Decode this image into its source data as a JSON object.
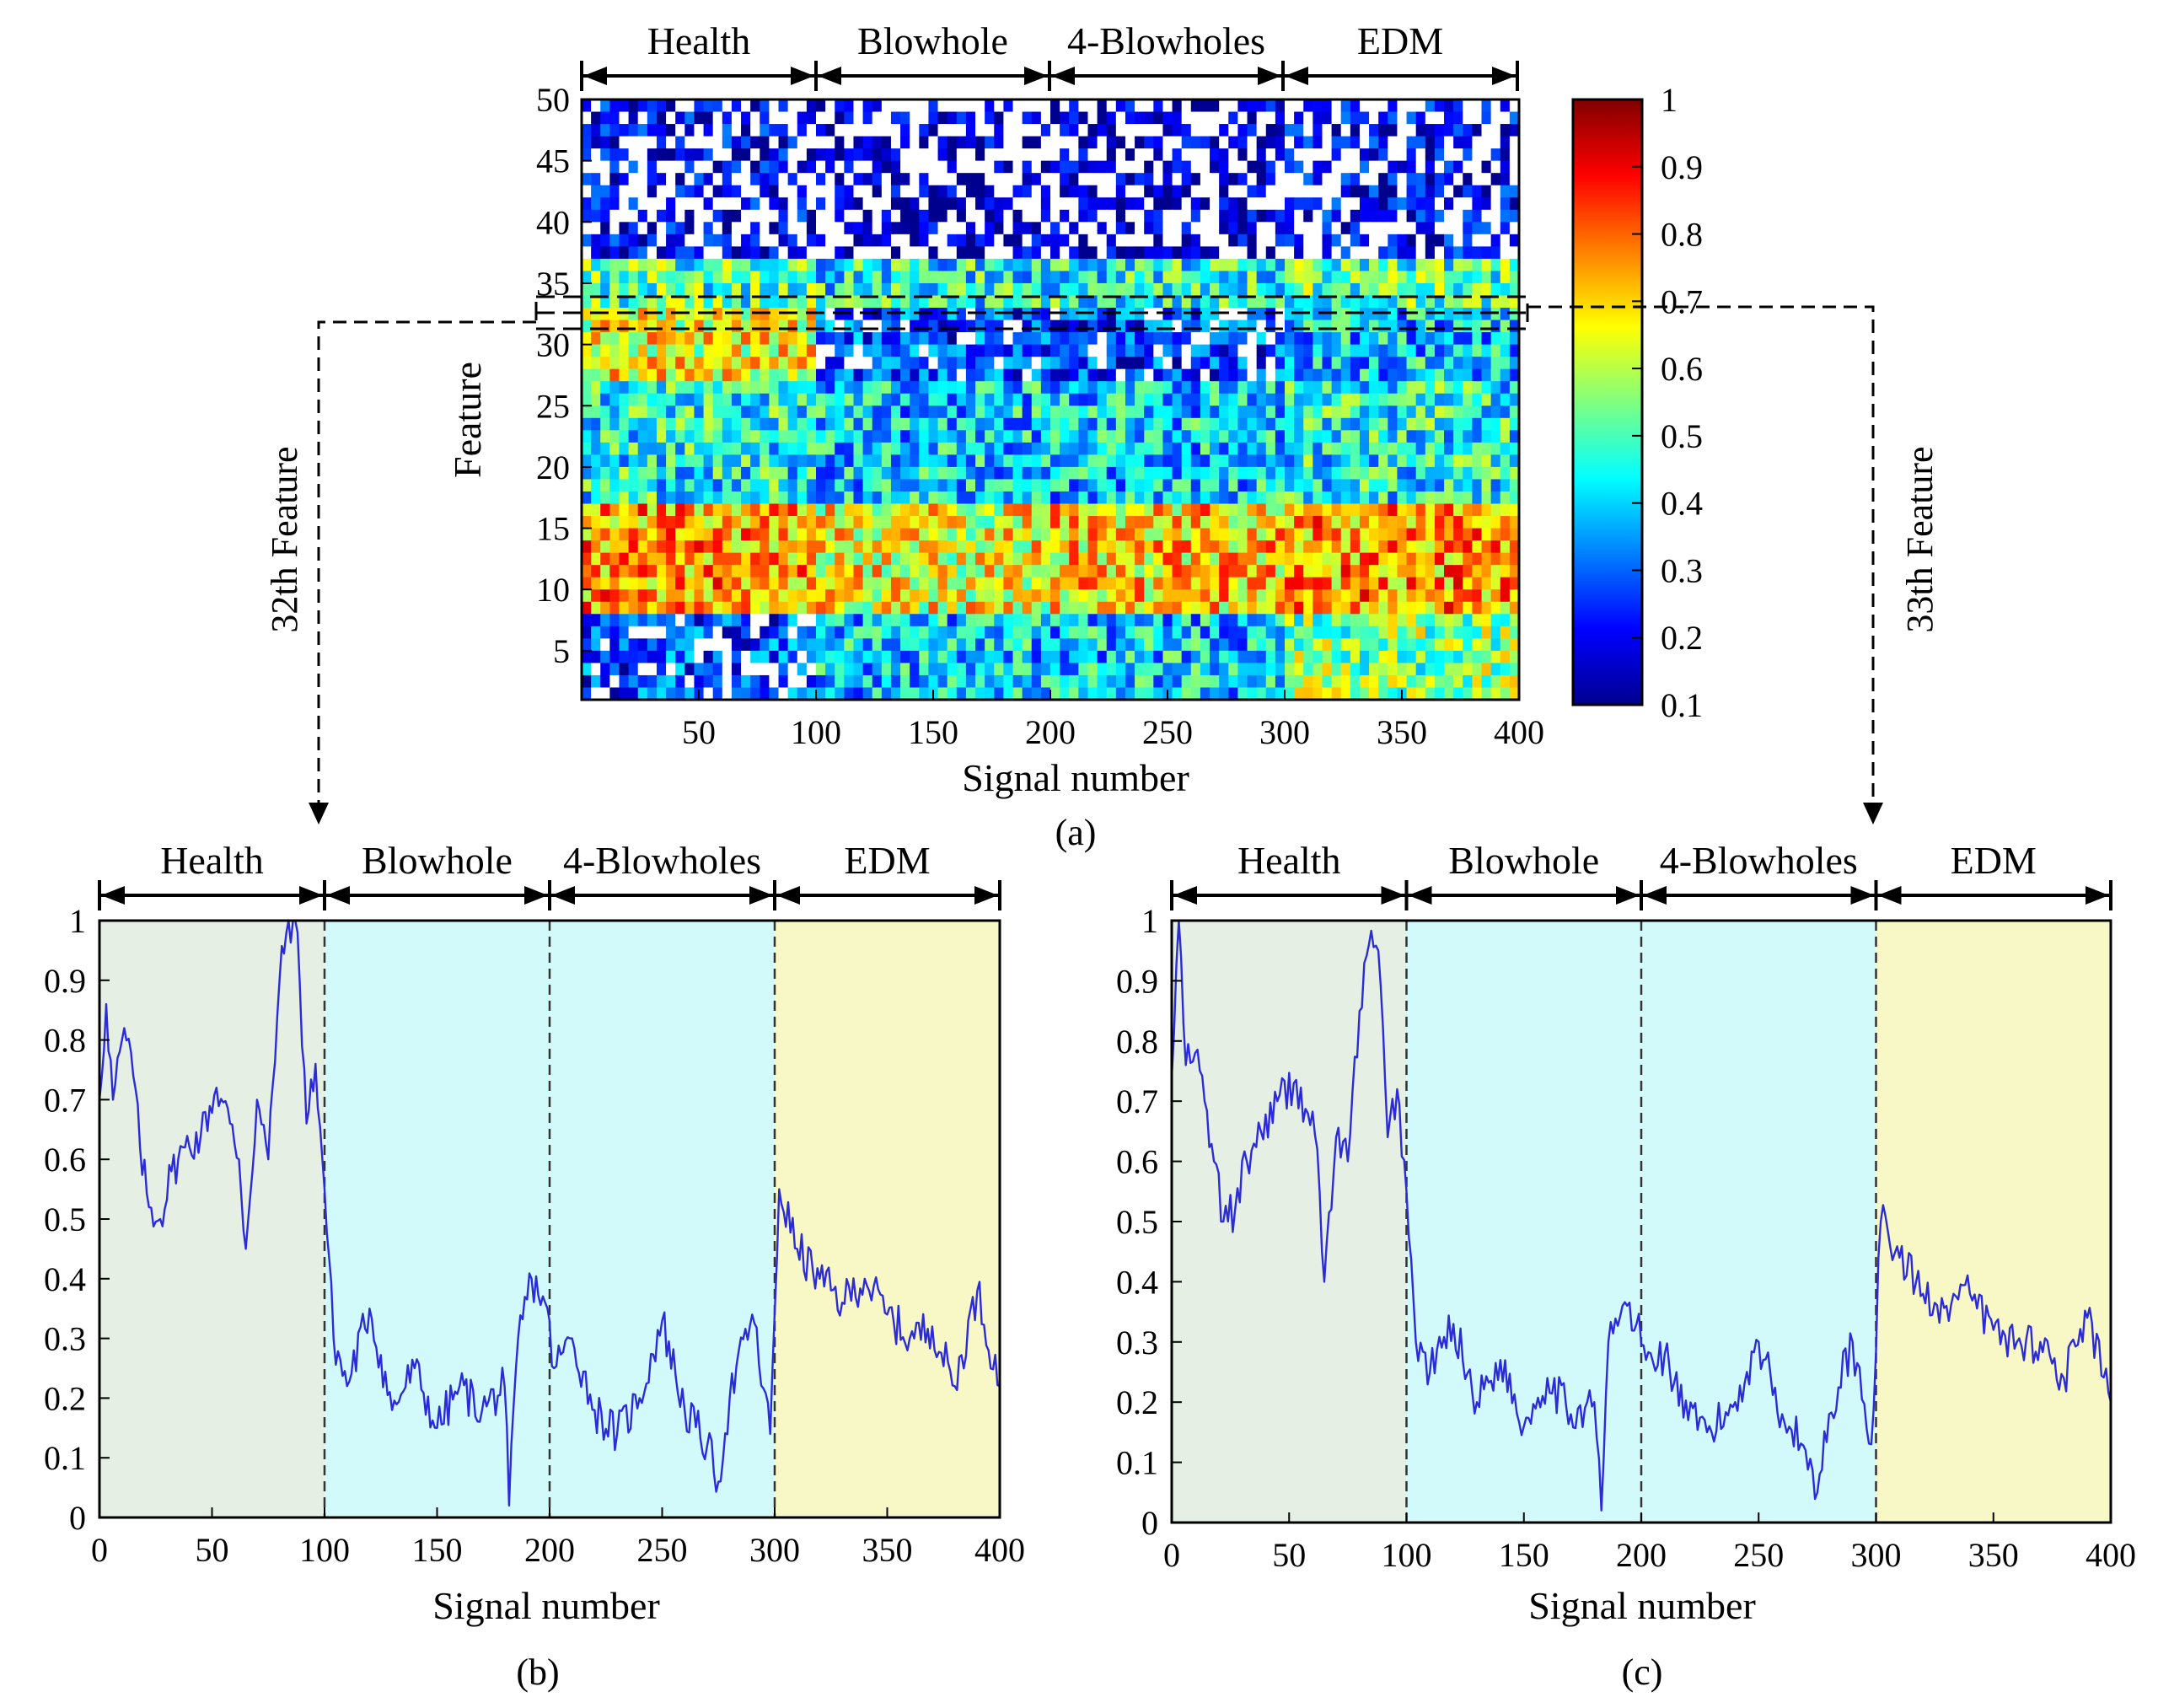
{
  "panel_a": {
    "caption": "(a)",
    "xlabel": "Signal number",
    "ylabel": "Feature",
    "xticks": [
      50,
      100,
      150,
      200,
      250,
      300,
      350,
      400
    ],
    "yticks": [
      5,
      10,
      15,
      20,
      25,
      30,
      35,
      40,
      45,
      50
    ],
    "colorbar_ticks": [
      "1",
      "0.9",
      "0.8",
      "0.7",
      "0.6",
      "0.5",
      "0.4",
      "0.3",
      "0.2",
      "0.1"
    ],
    "groups": [
      "Health",
      "Blowhole",
      "4-Blowholes",
      "EDM"
    ]
  },
  "annotations": {
    "left_feature": "32th Feature",
    "right_feature": "33th Feature"
  },
  "panel_b": {
    "caption": "(b)",
    "xlabel": "Signal number",
    "groups": [
      "Health",
      "Blowhole",
      "4-Blowholes",
      "EDM"
    ],
    "xticks": [
      "0",
      "50",
      "100",
      "150",
      "200",
      "250",
      "300",
      "350",
      "400"
    ],
    "yticks": [
      "1",
      "0.9",
      "0.8",
      "0.7",
      "0.6",
      "0.5",
      "0.4",
      "0.3",
      "0.2",
      "0.1",
      "0"
    ]
  },
  "panel_c": {
    "caption": "(c)",
    "xlabel": "Signal number",
    "groups": [
      "Health",
      "Blowhole",
      "4-Blowholes",
      "EDM"
    ],
    "xticks": [
      "0",
      "50",
      "100",
      "150",
      "200",
      "250",
      "300",
      "350",
      "400"
    ],
    "yticks": [
      "1",
      "0.9",
      "0.8",
      "0.7",
      "0.6",
      "0.5",
      "0.4",
      "0.3",
      "0.2",
      "0.1",
      "0"
    ]
  },
  "colors": {
    "health_bg": "#e5efe3",
    "defect_bg": "#d3fafa",
    "edm_bg": "#f8f8c6",
    "line": "#2b2bd8"
  },
  "chart_data": [
    {
      "type": "heatmap",
      "title": "(a)",
      "xlabel": "Signal number",
      "ylabel": "Feature",
      "xlim": [
        0,
        400
      ],
      "ylim": [
        1,
        50
      ],
      "colorbar_range": [
        0.1,
        1
      ],
      "groups": [
        {
          "name": "Health",
          "range": [
            0,
            100
          ]
        },
        {
          "name": "Blowhole",
          "range": [
            100,
            200
          ]
        },
        {
          "name": "4-Blowholes",
          "range": [
            200,
            300
          ]
        },
        {
          "name": "EDM",
          "range": [
            300,
            400
          ]
        }
      ],
      "feature_band_levels": [
        {
          "features": [
            1,
            8
          ],
          "levels": [
            0.25,
            0.4,
            0.4,
            0.55
          ]
        },
        {
          "features": [
            9,
            17
          ],
          "levels": [
            0.75,
            0.65,
            0.7,
            0.75
          ]
        },
        {
          "features": [
            18,
            27
          ],
          "levels": [
            0.45,
            0.4,
            0.4,
            0.45
          ]
        },
        {
          "features": [
            28,
            33
          ],
          "levels": [
            0.65,
            0.25,
            0.25,
            0.4
          ]
        },
        {
          "features": [
            34,
            37
          ],
          "levels": [
            0.5,
            0.45,
            0.45,
            0.5
          ]
        },
        {
          "features": [
            38,
            50
          ],
          "levels": [
            0.15,
            0.1,
            0.1,
            0.15
          ]
        }
      ],
      "highlighted_features": [
        32,
        33
      ]
    },
    {
      "type": "line",
      "title": "(b)",
      "feature": 32,
      "xlabel": "Signal number",
      "xlim": [
        0,
        400
      ],
      "ylim": [
        0,
        1
      ],
      "x": [
        0,
        3,
        6,
        10,
        14,
        18,
        22,
        27,
        32,
        38,
        45,
        52,
        58,
        62,
        65,
        70,
        75,
        80,
        84,
        88,
        92,
        96,
        100,
        104,
        110,
        120,
        130,
        140,
        150,
        160,
        170,
        180,
        182,
        186,
        192,
        198,
        202,
        210,
        220,
        230,
        240,
        250,
        260,
        270,
        275,
        280,
        290,
        298,
        302,
        310,
        320,
        330,
        340,
        350,
        360,
        370,
        380,
        390,
        400
      ],
      "y": [
        0.7,
        0.86,
        0.7,
        0.8,
        0.78,
        0.62,
        0.52,
        0.5,
        0.58,
        0.62,
        0.64,
        0.72,
        0.66,
        0.6,
        0.45,
        0.7,
        0.6,
        0.9,
        1.0,
        0.98,
        0.66,
        0.76,
        0.55,
        0.3,
        0.22,
        0.35,
        0.18,
        0.25,
        0.15,
        0.22,
        0.18,
        0.22,
        0.02,
        0.3,
        0.4,
        0.36,
        0.25,
        0.3,
        0.18,
        0.14,
        0.2,
        0.33,
        0.18,
        0.12,
        0.06,
        0.2,
        0.34,
        0.14,
        0.55,
        0.45,
        0.4,
        0.36,
        0.4,
        0.34,
        0.3,
        0.32,
        0.22,
        0.38,
        0.22
      ]
    },
    {
      "type": "line",
      "title": "(c)",
      "feature": 33,
      "xlabel": "Signal number",
      "xlim": [
        0,
        400
      ],
      "ylim": [
        0,
        1
      ],
      "x": [
        0,
        3,
        6,
        10,
        14,
        18,
        22,
        27,
        32,
        38,
        45,
        52,
        58,
        62,
        65,
        70,
        75,
        80,
        84,
        88,
        92,
        96,
        100,
        104,
        110,
        120,
        130,
        140,
        150,
        160,
        170,
        180,
        183,
        186,
        192,
        198,
        202,
        210,
        220,
        230,
        240,
        250,
        260,
        270,
        275,
        280,
        290,
        298,
        302,
        310,
        320,
        330,
        340,
        350,
        360,
        370,
        380,
        390,
        400
      ],
      "y": [
        0.74,
        1.0,
        0.76,
        0.78,
        0.7,
        0.6,
        0.5,
        0.52,
        0.6,
        0.65,
        0.7,
        0.73,
        0.68,
        0.62,
        0.4,
        0.64,
        0.6,
        0.85,
        0.96,
        0.95,
        0.64,
        0.72,
        0.55,
        0.3,
        0.25,
        0.33,
        0.2,
        0.27,
        0.16,
        0.24,
        0.18,
        0.2,
        0.02,
        0.3,
        0.36,
        0.33,
        0.27,
        0.28,
        0.17,
        0.15,
        0.2,
        0.3,
        0.18,
        0.12,
        0.05,
        0.18,
        0.3,
        0.13,
        0.5,
        0.44,
        0.38,
        0.36,
        0.38,
        0.32,
        0.3,
        0.3,
        0.24,
        0.34,
        0.2
      ]
    }
  ]
}
